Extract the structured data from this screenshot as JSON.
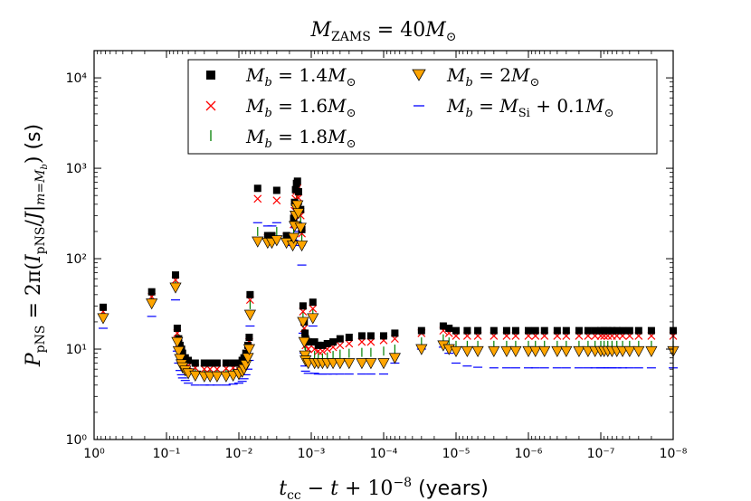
{
  "chart_data": {
    "type": "scatter",
    "title": "M_ZAMS = 40M⊙",
    "xlabel": "t_cc − t + 10⁻⁸ (years)",
    "ylabel": "P_pNS = 2π(I_pNS / J|_{m=M_b}) (s)",
    "x_scale": "log",
    "x_reversed": true,
    "y_scale": "log",
    "xlim": [
      1,
      1e-08
    ],
    "ylim": [
      1,
      20000
    ],
    "x_ticks": [
      {
        "value": 1,
        "label": "10⁰"
      },
      {
        "value": 0.1,
        "label": "10⁻¹"
      },
      {
        "value": 0.01,
        "label": "10⁻²"
      },
      {
        "value": 0.001,
        "label": "10⁻³"
      },
      {
        "value": 0.0001,
        "label": "10⁻⁴"
      },
      {
        "value": 1e-05,
        "label": "10⁻⁵"
      },
      {
        "value": 1e-06,
        "label": "10⁻⁶"
      },
      {
        "value": 1e-07,
        "label": "10⁻⁷"
      },
      {
        "value": 1e-08,
        "label": "10⁻⁸"
      }
    ],
    "y_ticks": [
      {
        "value": 1,
        "label": "10⁰"
      },
      {
        "value": 10,
        "label": "10¹"
      },
      {
        "value": 100,
        "label": "10²"
      },
      {
        "value": 1000,
        "label": "10³"
      },
      {
        "value": 10000,
        "label": "10⁴"
      }
    ],
    "legend": {
      "placement": "top-right",
      "entries": [
        "M_b = 1.4M⊙",
        "M_b = 2M⊙",
        "M_b = 1.6M⊙",
        "M_b = M_Si + 0.1M⊙",
        "M_b = 1.8M⊙"
      ]
    },
    "grid": false,
    "series": [
      {
        "name": "M_b = 1.4M⊙",
        "marker": "square",
        "color": "#000000",
        "x": [
          0.75,
          0.16,
          0.075,
          0.071,
          0.068,
          0.065,
          0.062,
          0.06,
          0.055,
          0.05,
          0.04,
          0.03,
          0.025,
          0.02,
          0.015,
          0.012,
          0.01,
          0.009,
          0.0085,
          0.008,
          0.0075,
          0.0072,
          0.007,
          0.0055,
          0.004,
          0.0035,
          0.003,
          0.0022,
          0.0018,
          0.00175,
          0.0017,
          0.00165,
          0.0016,
          0.00155,
          0.0015,
          0.0014,
          0.00135,
          0.0013,
          0.00125,
          0.00122,
          0.0012,
          0.0011,
          0.00095,
          0.0009,
          0.0008,
          0.0007,
          0.0006,
          0.0005,
          0.0004,
          0.0003,
          0.0002,
          0.00015,
          0.0001,
          7e-05,
          3e-05,
          1.5e-05,
          1.25e-05,
          1e-05,
          7e-06,
          5e-06,
          3e-06,
          2e-06,
          1.5e-06,
          1e-06,
          8e-07,
          6e-07,
          4e-07,
          3e-07,
          2e-07,
          1.5e-07,
          1.2e-07,
          1e-07,
          9e-08,
          8e-08,
          7e-08,
          6e-08,
          5e-08,
          4e-08,
          3e-08,
          2e-08,
          1e-08
        ],
        "y": [
          29,
          43,
          66,
          17,
          13,
          11,
          10,
          9,
          8,
          7.5,
          7,
          7,
          7,
          7,
          7,
          7,
          7,
          7.5,
          8,
          9,
          11,
          13.5,
          40,
          600,
          180,
          180,
          570,
          180,
          170,
          280,
          420,
          580,
          680,
          720,
          550,
          350,
          210,
          30,
          20,
          15,
          13,
          12,
          33,
          12,
          11,
          11,
          11.5,
          12,
          13,
          13.5,
          14,
          14,
          14,
          15,
          16,
          18,
          17,
          16,
          16,
          16,
          16,
          16,
          16,
          16,
          16,
          16,
          16,
          16,
          16,
          16,
          16,
          16,
          16,
          16,
          16,
          16,
          16,
          16,
          16,
          16,
          16
        ]
      },
      {
        "name": "M_b = 1.6M⊙",
        "marker": "x",
        "color": "#ff0000",
        "x": [
          0.75,
          0.16,
          0.075,
          0.071,
          0.068,
          0.065,
          0.062,
          0.06,
          0.055,
          0.05,
          0.04,
          0.03,
          0.025,
          0.02,
          0.015,
          0.012,
          0.01,
          0.009,
          0.0085,
          0.008,
          0.0075,
          0.0072,
          0.007,
          0.0055,
          0.004,
          0.0035,
          0.003,
          0.0022,
          0.0018,
          0.00175,
          0.0017,
          0.00165,
          0.0016,
          0.00155,
          0.0015,
          0.0014,
          0.00135,
          0.0013,
          0.00125,
          0.00122,
          0.0012,
          0.0011,
          0.00095,
          0.0009,
          0.0008,
          0.0007,
          0.0006,
          0.0005,
          0.0004,
          0.0003,
          0.0002,
          0.00015,
          0.0001,
          7e-05,
          3e-05,
          1.5e-05,
          1.25e-05,
          1e-05,
          7e-06,
          5e-06,
          3e-06,
          2e-06,
          1.5e-06,
          1e-06,
          8e-07,
          6e-07,
          4e-07,
          3e-07,
          2e-07,
          1.5e-07,
          1.2e-07,
          1e-07,
          9e-08,
          8e-08,
          7e-08,
          6e-08,
          5e-08,
          4e-08,
          3e-08,
          2e-08,
          1e-08
        ],
        "y": [
          26,
          38,
          58,
          15,
          11.5,
          9.5,
          8.5,
          7.8,
          7,
          6.5,
          6.2,
          6,
          6,
          6,
          6.1,
          6.2,
          6.4,
          6.8,
          7.2,
          8,
          9.5,
          12,
          35,
          460,
          170,
          175,
          440,
          175,
          160,
          240,
          340,
          460,
          560,
          600,
          470,
          300,
          190,
          26,
          17,
          13,
          11,
          10,
          28,
          10,
          9.5,
          9.5,
          10,
          10.5,
          11,
          11.5,
          12,
          12,
          12.5,
          13,
          15,
          16,
          15,
          14,
          14,
          14,
          14,
          14,
          14,
          14,
          14,
          14,
          14,
          14,
          14,
          14,
          14,
          14,
          14,
          14,
          14,
          14,
          14,
          14,
          14,
          14,
          14
        ]
      },
      {
        "name": "M_b = 1.8M⊙",
        "marker": "vline",
        "color": "#008000",
        "x": [
          0.75,
          0.16,
          0.075,
          0.071,
          0.068,
          0.065,
          0.062,
          0.06,
          0.055,
          0.05,
          0.04,
          0.03,
          0.025,
          0.02,
          0.015,
          0.012,
          0.01,
          0.009,
          0.0085,
          0.008,
          0.0075,
          0.0072,
          0.007,
          0.0055,
          0.004,
          0.0035,
          0.003,
          0.0022,
          0.0018,
          0.00175,
          0.0017,
          0.00165,
          0.0016,
          0.00155,
          0.0015,
          0.0014,
          0.00135,
          0.0013,
          0.00125,
          0.00122,
          0.0012,
          0.0011,
          0.00095,
          0.0009,
          0.0008,
          0.0007,
          0.0006,
          0.0005,
          0.0004,
          0.0003,
          0.0002,
          0.00015,
          0.0001,
          7e-05,
          3e-05,
          1.5e-05,
          1.25e-05,
          1e-05,
          7e-06,
          5e-06,
          3e-06,
          2e-06,
          1.5e-06,
          1e-06,
          8e-07,
          6e-07,
          4e-07,
          3e-07,
          2e-07,
          1.5e-07,
          1.2e-07,
          1e-07,
          9e-08,
          8e-08,
          7e-08,
          6e-08,
          5e-08,
          4e-08,
          3e-08,
          2e-08,
          1e-08
        ],
        "y": [
          24,
          35,
          53,
          13.5,
          10.5,
          8.6,
          7.6,
          7,
          6.3,
          5.8,
          5.5,
          5.4,
          5.4,
          5.4,
          5.5,
          5.6,
          5.8,
          6.1,
          6.6,
          7.3,
          8.8,
          11,
          31,
          200,
          165,
          165,
          200,
          165,
          150,
          200,
          280,
          360,
          440,
          470,
          380,
          260,
          170,
          23,
          15,
          11,
          9.5,
          8.5,
          25,
          8.5,
          8.2,
          8,
          8.2,
          8.5,
          8.8,
          9,
          9.2,
          9.2,
          9.5,
          10,
          12,
          13,
          12,
          11,
          11,
          11,
          11,
          11,
          11,
          11,
          11,
          11,
          11,
          11,
          11,
          11,
          11,
          11,
          11,
          11,
          11,
          11,
          11,
          11,
          11,
          11,
          11
        ]
      },
      {
        "name": "M_b = 2M⊙",
        "marker": "triangle-down",
        "color": "#ffa500",
        "x": [
          0.75,
          0.16,
          0.075,
          0.071,
          0.068,
          0.065,
          0.062,
          0.06,
          0.055,
          0.05,
          0.04,
          0.03,
          0.025,
          0.02,
          0.015,
          0.012,
          0.01,
          0.009,
          0.0085,
          0.008,
          0.0075,
          0.0072,
          0.007,
          0.0055,
          0.004,
          0.0035,
          0.003,
          0.0022,
          0.0018,
          0.00175,
          0.0017,
          0.00165,
          0.0016,
          0.00155,
          0.0015,
          0.0014,
          0.00135,
          0.0013,
          0.00125,
          0.00122,
          0.0012,
          0.0011,
          0.00095,
          0.0009,
          0.0008,
          0.0007,
          0.0006,
          0.0005,
          0.0004,
          0.0003,
          0.0002,
          0.00015,
          0.0001,
          7e-05,
          3e-05,
          1.5e-05,
          1.25e-05,
          1e-05,
          7e-06,
          5e-06,
          3e-06,
          2e-06,
          1.5e-06,
          1e-06,
          8e-07,
          6e-07,
          4e-07,
          3e-07,
          2e-07,
          1.5e-07,
          1.2e-07,
          1e-07,
          9e-08,
          8e-08,
          7e-08,
          6e-08,
          5e-08,
          4e-08,
          3e-08,
          2e-08,
          1e-08
        ],
        "y": [
          22,
          32,
          48,
          12,
          9.5,
          7.8,
          6.8,
          6.3,
          5.8,
          5.4,
          5.1,
          5,
          5,
          5,
          5,
          5.1,
          5.3,
          5.6,
          6,
          6.7,
          8,
          10,
          24,
          155,
          150,
          150,
          160,
          150,
          140,
          170,
          230,
          300,
          360,
          390,
          320,
          220,
          140,
          20,
          12,
          8.5,
          7.5,
          7,
          22,
          7,
          7,
          7,
          7,
          7,
          7,
          7,
          7,
          7,
          7,
          8,
          10,
          11,
          10,
          9.5,
          9.5,
          9.5,
          9.5,
          9.5,
          9.5,
          9.5,
          9.5,
          9.5,
          9.5,
          9.5,
          9.5,
          9.5,
          9.5,
          9.5,
          9.5,
          9.5,
          9.5,
          9.5,
          9.5,
          9.5,
          9.5,
          9.5,
          9.5
        ]
      },
      {
        "name": "M_b = M_Si + 0.1M⊙",
        "marker": "hline",
        "color": "#0000ff",
        "x": [
          0.75,
          0.16,
          0.075,
          0.071,
          0.068,
          0.065,
          0.062,
          0.06,
          0.055,
          0.05,
          0.04,
          0.03,
          0.025,
          0.02,
          0.015,
          0.012,
          0.01,
          0.009,
          0.0085,
          0.008,
          0.0075,
          0.0072,
          0.007,
          0.0055,
          0.004,
          0.0035,
          0.003,
          0.0022,
          0.0018,
          0.00175,
          0.0017,
          0.00165,
          0.0016,
          0.00155,
          0.0015,
          0.0014,
          0.00135,
          0.0013,
          0.00125,
          0.00122,
          0.0012,
          0.0011,
          0.00095,
          0.0009,
          0.0008,
          0.0007,
          0.0006,
          0.0005,
          0.0004,
          0.0003,
          0.0002,
          0.00015,
          0.0001,
          7e-05,
          3e-05,
          1.5e-05,
          1.25e-05,
          1e-05,
          7e-06,
          5e-06,
          3e-06,
          2e-06,
          1.5e-06,
          1e-06,
          8e-07,
          6e-07,
          4e-07,
          3e-07,
          2e-07,
          1.5e-07,
          1.2e-07,
          1e-07,
          9e-08,
          8e-08,
          7e-08,
          6e-08,
          5e-08,
          4e-08,
          3e-08,
          2e-08,
          1e-08
        ],
        "y": [
          17,
          23,
          35,
          9.5,
          7,
          5.8,
          5.2,
          4.8,
          4.5,
          4.2,
          4,
          4,
          4,
          4,
          4,
          4.1,
          4.2,
          4.4,
          4.7,
          5.2,
          6,
          7.5,
          18,
          250,
          230,
          230,
          250,
          160,
          140,
          160,
          190,
          220,
          255,
          250,
          200,
          140,
          85,
          15,
          9,
          6.5,
          5.7,
          5.4,
          18,
          5.4,
          5.3,
          5.3,
          5.3,
          5.3,
          5.3,
          5.3,
          5.3,
          5.3,
          5.3,
          7,
          10,
          10.5,
          9,
          7,
          6.5,
          6.3,
          6.2,
          6.2,
          6.2,
          6.2,
          6.2,
          6.2,
          6.2,
          6.2,
          6.2,
          6.2,
          6.2,
          6.2,
          6.2,
          6.2,
          6.2,
          6.2,
          6.2,
          6.2,
          6.2,
          6.2,
          6.2
        ]
      }
    ]
  }
}
